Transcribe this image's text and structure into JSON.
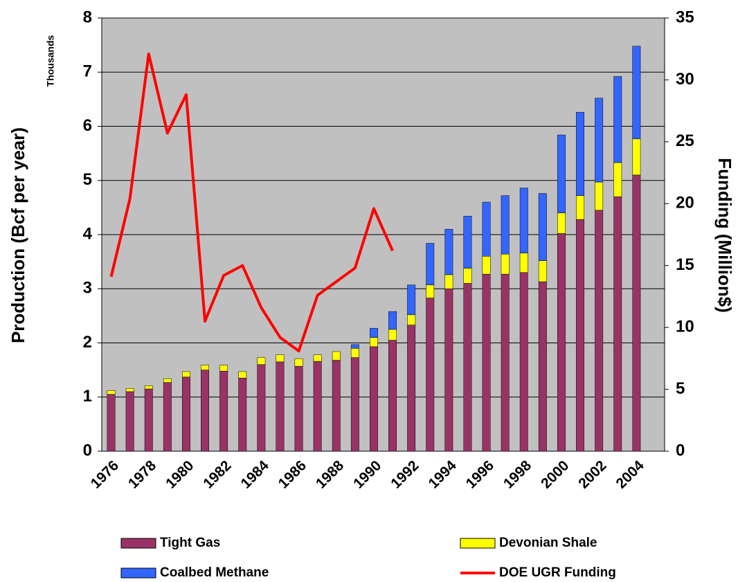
{
  "chart_data": {
    "type": "bar",
    "y_label": "Production (Bcf per year)",
    "y_unit_label": "Thousands",
    "y2_label": "Funding (Million$)",
    "categories": [
      "1976",
      null,
      "1978",
      null,
      "1980",
      null,
      "1982",
      null,
      "1984",
      null,
      "1986",
      null,
      "1988",
      null,
      "1990",
      null,
      "1992",
      null,
      "1994",
      null,
      "1996",
      null,
      "1998",
      null,
      "2000",
      null,
      "2002",
      null,
      "2004",
      null
    ],
    "series": [
      {
        "name": "Tight Gas",
        "color": "#993366",
        "values": [
          1.05,
          1.1,
          1.15,
          1.27,
          1.37,
          1.5,
          1.48,
          1.35,
          1.6,
          1.65,
          1.57,
          1.66,
          1.68,
          1.73,
          1.93,
          2.05,
          2.33,
          2.83,
          3.0,
          3.1,
          3.27,
          3.27,
          3.3,
          3.13,
          4.02,
          4.28,
          4.45,
          4.7,
          5.1,
          null
        ]
      },
      {
        "name": "Devonian Shale",
        "color": "#ffff00",
        "values": [
          0.07,
          0.06,
          0.06,
          0.07,
          0.1,
          0.09,
          0.11,
          0.12,
          0.13,
          0.13,
          0.14,
          0.12,
          0.16,
          0.17,
          0.17,
          0.2,
          0.19,
          0.24,
          0.26,
          0.28,
          0.33,
          0.37,
          0.36,
          0.39,
          0.38,
          0.44,
          0.52,
          0.63,
          0.67,
          null
        ]
      },
      {
        "name": "Coalbed Methane",
        "color": "#3366ff",
        "values": [
          0,
          0,
          0,
          0,
          0,
          0,
          0,
          0,
          0,
          0,
          0,
          0,
          0,
          0.07,
          0.17,
          0.33,
          0.55,
          0.77,
          0.84,
          0.96,
          1.0,
          1.08,
          1.2,
          1.24,
          1.44,
          1.54,
          1.55,
          1.59,
          1.71,
          null
        ]
      },
      {
        "name": "DOE UGR Funding",
        "color": "#ff0000",
        "type": "line",
        "axis": "y2",
        "values": [
          14.1,
          20.4,
          32.1,
          25.7,
          28.8,
          10.5,
          14.2,
          15.0,
          11.6,
          9.2,
          8.1,
          12.6,
          13.7,
          14.8,
          19.6,
          16.2,
          null,
          null,
          null,
          null,
          null,
          null,
          null,
          null,
          null,
          null,
          null,
          null,
          null,
          null
        ]
      }
    ],
    "stacked": true,
    "ylim": [
      0,
      8
    ],
    "yticks": [
      0,
      1,
      2,
      3,
      4,
      5,
      6,
      7,
      8
    ],
    "y2lim": [
      0,
      35
    ],
    "y2ticks": [
      0,
      5,
      10,
      15,
      20,
      25,
      30,
      35
    ],
    "grid": true,
    "background": "#c0c0c0",
    "legend": "bottom"
  }
}
